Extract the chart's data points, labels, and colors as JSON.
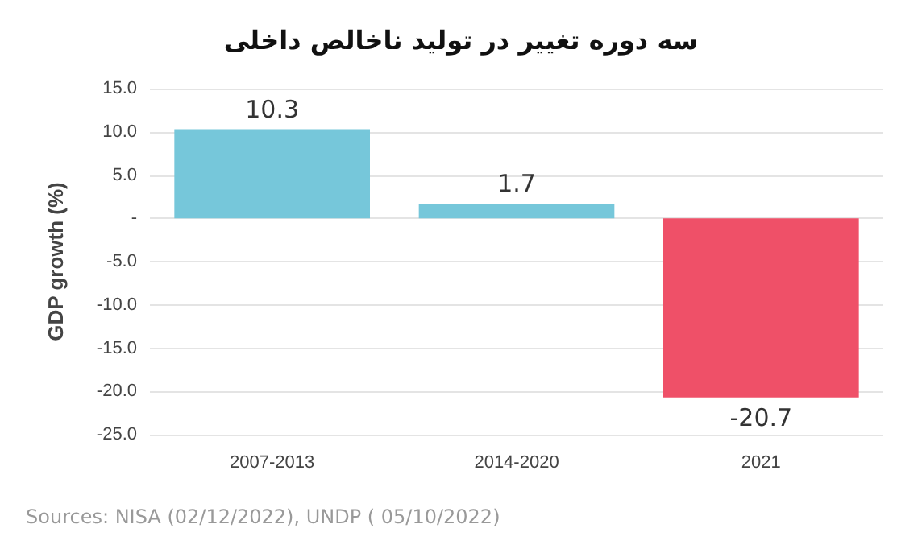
{
  "chart_data": {
    "type": "bar",
    "title": "سه دوره تغییر در تولید ناخالص داخلی",
    "ylabel": "GDP growth (%)",
    "categories": [
      "2007-2013",
      "2014-2020",
      "2021"
    ],
    "values": [
      10.3,
      1.7,
      -20.7
    ],
    "colors": [
      "#76c7da",
      "#76c7da",
      "#ef5068"
    ],
    "ylim": [
      -25,
      15
    ],
    "yticks": [
      {
        "value": 15,
        "label": "15.0"
      },
      {
        "value": 10,
        "label": "10.0"
      },
      {
        "value": 5,
        "label": "5.0"
      },
      {
        "value": 0,
        "label": "-"
      },
      {
        "value": -5,
        "label": "-5.0"
      },
      {
        "value": -10,
        "label": "-10.0"
      },
      {
        "value": -15,
        "label": "-15.0"
      },
      {
        "value": -20,
        "label": "-20.0"
      },
      {
        "value": -25,
        "label": "-25.0"
      }
    ],
    "grid": "y",
    "data_labels": true,
    "annotations": [
      "Sources: NISA (02/12/2022), UNDP ( 05/10/2022)"
    ]
  }
}
